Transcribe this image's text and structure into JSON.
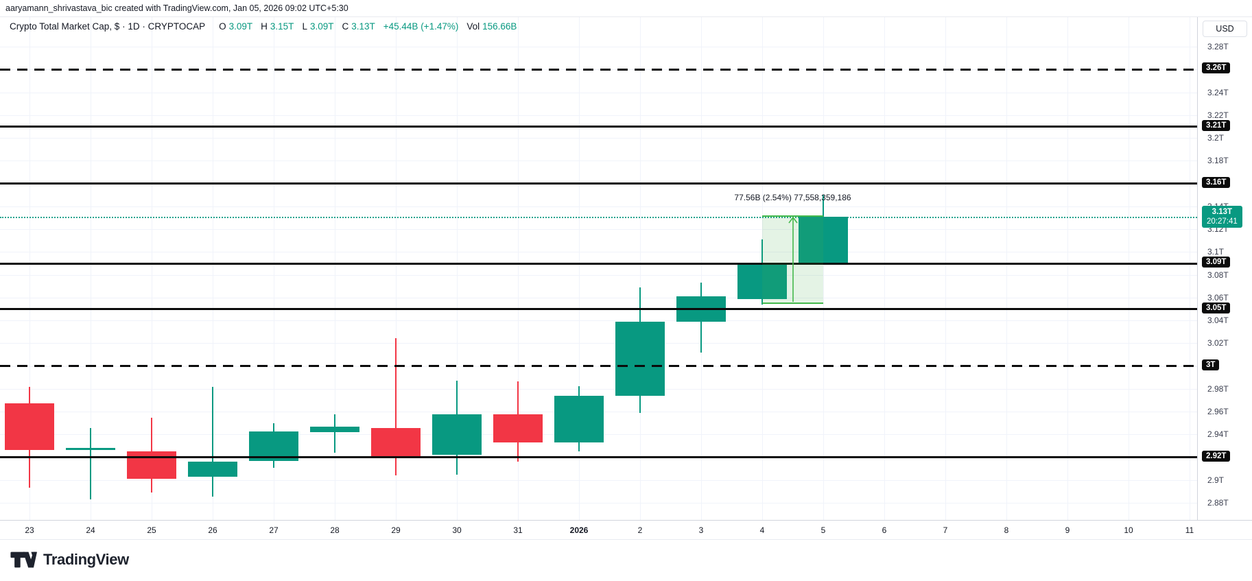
{
  "attribution": "aaryamann_shrivastava_bic created with TradingView.com, Jan 05, 2026 09:02 UTC+5:30",
  "legend": {
    "symbol": "Crypto Total Market Cap, $ · 1D · CRYPTOCAP",
    "open_label": "O",
    "open": "3.09T",
    "high_label": "H",
    "high": "3.15T",
    "low_label": "L",
    "low": "3.09T",
    "close_label": "C",
    "close": "3.13T",
    "change": "+45.44B (+1.47%)",
    "vol_label": "Vol",
    "volume": "156.66B"
  },
  "price_axis": {
    "currency": "USD",
    "ticks": [
      {
        "label": "3.28T",
        "price": 3.28
      },
      {
        "label": "3.24T",
        "price": 3.24
      },
      {
        "label": "3.22T",
        "price": 3.22
      },
      {
        "label": "3.2T",
        "price": 3.2
      },
      {
        "label": "3.18T",
        "price": 3.18
      },
      {
        "label": "3.14T",
        "price": 3.14
      },
      {
        "label": "3.12T",
        "price": 3.12
      },
      {
        "label": "3.1T",
        "price": 3.1
      },
      {
        "label": "3.08T",
        "price": 3.08
      },
      {
        "label": "3.06T",
        "price": 3.06
      },
      {
        "label": "3.04T",
        "price": 3.04
      },
      {
        "label": "3.02T",
        "price": 3.02
      },
      {
        "label": "2.98T",
        "price": 2.98
      },
      {
        "label": "2.96T",
        "price": 2.96
      },
      {
        "label": "2.94T",
        "price": 2.94
      },
      {
        "label": "2.9T",
        "price": 2.9
      },
      {
        "label": "2.88T",
        "price": 2.88
      }
    ]
  },
  "time_axis": {
    "labels": [
      {
        "text": "23"
      },
      {
        "text": "24"
      },
      {
        "text": "25"
      },
      {
        "text": "26"
      },
      {
        "text": "27"
      },
      {
        "text": "28"
      },
      {
        "text": "29"
      },
      {
        "text": "30"
      },
      {
        "text": "31"
      },
      {
        "text": "2026",
        "bold": true
      },
      {
        "text": "2"
      },
      {
        "text": "3"
      },
      {
        "text": "4"
      },
      {
        "text": "5"
      },
      {
        "text": "6"
      },
      {
        "text": "7"
      },
      {
        "text": "8"
      },
      {
        "text": "9"
      },
      {
        "text": "10"
      },
      {
        "text": "11"
      }
    ]
  },
  "chart_data": {
    "type": "candlestick",
    "title": "Crypto Total Market Cap, $ · 1D · CRYPTOCAP",
    "ylabel": "USD (trillions)",
    "ylim": [
      2.865,
      3.306
    ],
    "x": [
      "Dec 23",
      "Dec 24",
      "Dec 25",
      "Dec 26",
      "Dec 27",
      "Dec 28",
      "Dec 29",
      "Dec 30",
      "Dec 31",
      "Jan 1 2026",
      "Jan 2",
      "Jan 3",
      "Jan 4",
      "Jan 5"
    ],
    "candles": [
      {
        "date": "Dec 23",
        "o": 2.9675,
        "h": 2.9815,
        "l": 2.8935,
        "c": 2.9265
      },
      {
        "date": "Dec 24",
        "o": 2.927,
        "h": 2.946,
        "l": 2.883,
        "c": 2.9285
      },
      {
        "date": "Dec 25",
        "o": 2.925,
        "h": 2.955,
        "l": 2.889,
        "c": 2.901
      },
      {
        "date": "Dec 26",
        "o": 2.903,
        "h": 2.9815,
        "l": 2.8855,
        "c": 2.916
      },
      {
        "date": "Dec 27",
        "o": 2.917,
        "h": 2.95,
        "l": 2.911,
        "c": 2.943
      },
      {
        "date": "Dec 28",
        "o": 2.942,
        "h": 2.958,
        "l": 2.924,
        "c": 2.947
      },
      {
        "date": "Dec 29",
        "o": 2.946,
        "h": 3.0245,
        "l": 2.904,
        "c": 2.921
      },
      {
        "date": "Dec 30",
        "o": 2.922,
        "h": 2.987,
        "l": 2.905,
        "c": 2.958
      },
      {
        "date": "Dec 31",
        "o": 2.958,
        "h": 2.9865,
        "l": 2.916,
        "c": 2.933
      },
      {
        "date": "Jan 1 2026",
        "o": 2.933,
        "h": 2.9825,
        "l": 2.925,
        "c": 2.974
      },
      {
        "date": "Jan 2",
        "o": 2.974,
        "h": 3.069,
        "l": 2.959,
        "c": 3.039
      },
      {
        "date": "Jan 3",
        "o": 3.039,
        "h": 3.073,
        "l": 3.012,
        "c": 3.061
      },
      {
        "date": "Jan 4",
        "o": 3.059,
        "h": 3.111,
        "l": 3.054,
        "c": 3.09
      },
      {
        "date": "Jan 5",
        "o": 3.09,
        "h": 3.15,
        "l": 3.09,
        "c": 3.131
      }
    ],
    "levels": [
      {
        "label": "3.26T",
        "price": 3.26,
        "style": "dashed"
      },
      {
        "label": "3.21T",
        "price": 3.21,
        "style": "solid"
      },
      {
        "label": "3.16T",
        "price": 3.16,
        "style": "solid"
      },
      {
        "label": "3.09T",
        "price": 3.09,
        "style": "solid"
      },
      {
        "label": "3.05T",
        "price": 3.05,
        "style": "solid"
      },
      {
        "label": "3T",
        "price": 3.0,
        "style": "dashed"
      },
      {
        "label": "2.92T",
        "price": 2.92,
        "style": "solid"
      }
    ],
    "current_price": {
      "label": "3.13T",
      "countdown": "20:27:41",
      "price": 3.131
    },
    "measure_tool": {
      "label": "77.56B (2.54%) 77,558,359,186",
      "from_price": 3.0545,
      "to_price": 3.1321,
      "from_slot": 12,
      "to_slot": 13,
      "direction": "up"
    },
    "legend_pos": "none",
    "grid": true
  },
  "colors": {
    "up": "#089981",
    "down": "#F23645",
    "level_line": "#0B0B0B",
    "current_line": "#089981",
    "measure_fill": "rgba(76,175,80,0.15)",
    "measure_stroke": "#44B94C",
    "badge_bg": "#0B0B0B",
    "badge_text": "#FFFFFF",
    "grid": "#F0F3FA"
  },
  "footer": {
    "logo_text": "TradingView"
  }
}
